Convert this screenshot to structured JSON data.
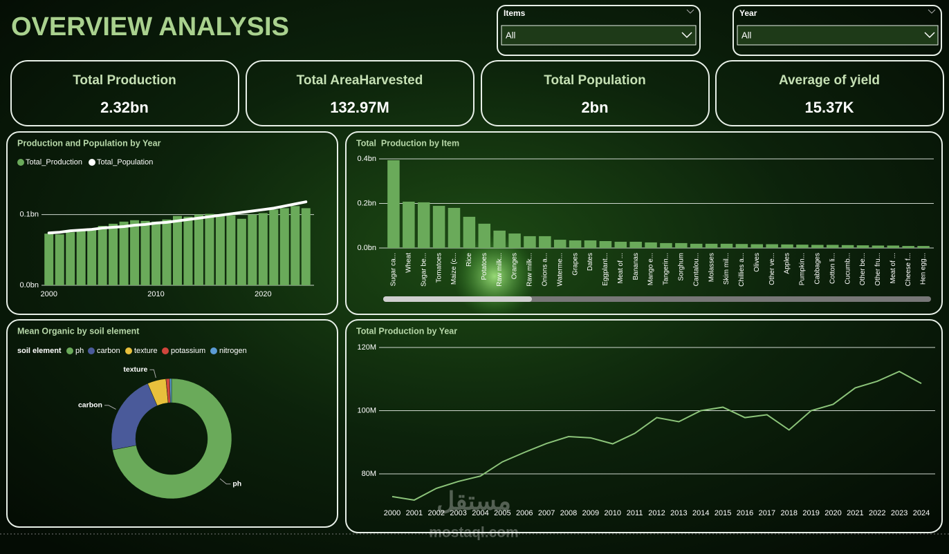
{
  "header": {
    "title": "OVERVIEW ANALYSIS"
  },
  "slicers": [
    {
      "label": "Items",
      "value": "All"
    },
    {
      "label": "Year",
      "value": "All"
    }
  ],
  "kpis": [
    {
      "label": "Total Production",
      "value": "2.32bn"
    },
    {
      "label": "Total AreaHarvested",
      "value": "132.97M"
    },
    {
      "label": "Total Population",
      "value": "2bn"
    },
    {
      "label": "Average of yield",
      "value": "15.37K"
    }
  ],
  "watermark": {
    "arabic": "مستقل",
    "latin": "mostaql.com"
  },
  "chart_data": [
    {
      "type": "bar",
      "title": "Production and Population by Year",
      "x": [
        2000,
        2001,
        2002,
        2003,
        2004,
        2005,
        2006,
        2007,
        2008,
        2009,
        2010,
        2011,
        2012,
        2013,
        2014,
        2015,
        2016,
        2017,
        2018,
        2019,
        2020,
        2021,
        2022,
        2023,
        2024
      ],
      "xlim": [
        1999.5,
        2024.5
      ],
      "xticks": [
        2000,
        2010,
        2020
      ],
      "ylim": [
        0,
        0.125
      ],
      "yticks": [
        {
          "value": 0,
          "label": "0.0bn"
        },
        {
          "value": 0.1,
          "label": "0.1bn"
        }
      ],
      "grid": true,
      "series": [
        {
          "name": "Total_Production",
          "type": "bar",
          "color": "#6aaa5a",
          "values": [
            0.073,
            0.072,
            0.075,
            0.078,
            0.079,
            0.084,
            0.087,
            0.09,
            0.092,
            0.091,
            0.09,
            0.093,
            0.098,
            0.097,
            0.1,
            0.101,
            0.098,
            0.099,
            0.094,
            0.1,
            0.102,
            0.107,
            0.109,
            0.112,
            0.109
          ]
        },
        {
          "name": "Total_Population",
          "type": "line",
          "color": "#ffffff",
          "values": [
            0.074,
            0.075,
            0.077,
            0.078,
            0.079,
            0.081,
            0.082,
            0.083,
            0.085,
            0.086,
            0.088,
            0.089,
            0.091,
            0.093,
            0.095,
            0.097,
            0.099,
            0.101,
            0.103,
            0.105,
            0.107,
            0.109,
            0.112,
            0.115,
            0.118
          ]
        }
      ]
    },
    {
      "type": "bar",
      "title": "Total  Production by Item",
      "categories": [
        "Sugar ca...",
        "Wheat",
        "Sugar be...",
        "Tomatoes",
        "Maize (c...",
        "Rice",
        "Potatoes",
        "Raw milk...",
        "Oranges",
        "Raw milk...",
        "Onions a...",
        "Waterme...",
        "Grapes",
        "Dates",
        "Eggplant...",
        "Meat of ...",
        "Bananas",
        "Mango e...",
        "Tangerin...",
        "Sorghum",
        "Cantalou...",
        "Molasses",
        "Skim mil...",
        "Chillies a...",
        "Olives",
        "Other ve...",
        "Apples",
        "Pumpkin...",
        "Cabbages",
        "Cotton li...",
        "Cucumb...",
        "Other be...",
        "Other fru...",
        "Meat of ...",
        "Cheese f...",
        "Hen egg..."
      ],
      "values": [
        0.394,
        0.208,
        0.205,
        0.189,
        0.18,
        0.14,
        0.109,
        0.078,
        0.065,
        0.053,
        0.053,
        0.037,
        0.034,
        0.034,
        0.031,
        0.028,
        0.028,
        0.025,
        0.022,
        0.022,
        0.019,
        0.019,
        0.019,
        0.018,
        0.017,
        0.017,
        0.016,
        0.015,
        0.014,
        0.014,
        0.013,
        0.012,
        0.011,
        0.011,
        0.009,
        0.009
      ],
      "color": "#6aaa5a",
      "ylim": [
        0,
        0.4
      ],
      "yticks": [
        {
          "value": 0,
          "label": "0.0bn"
        },
        {
          "value": 0.2,
          "label": "0.2bn"
        },
        {
          "value": 0.4,
          "label": "0.4bn"
        }
      ],
      "grid": true
    },
    {
      "type": "donut",
      "title": "Mean Organic by soil element",
      "legend_title": "soil element",
      "categories": [
        "ph",
        "carbon",
        "texture",
        "potassium",
        "nitrogen"
      ],
      "values": [
        72,
        21.5,
        5,
        1,
        0.5
      ],
      "colors": [
        "#6aaa5a",
        "#4a5a9a",
        "#e8c03c",
        "#d0453c",
        "#5b9bd5"
      ]
    },
    {
      "type": "line",
      "title": "Total Production by Year",
      "categories": [
        "2000",
        "2001",
        "2002",
        "2003",
        "2004",
        "2005",
        "2006",
        "2007",
        "2008",
        "2009",
        "2010",
        "2011",
        "2012",
        "2013",
        "2014",
        "2015",
        "2016",
        "2017",
        "2018",
        "2019",
        "2020",
        "2021",
        "2022",
        "2023",
        "2024"
      ],
      "values": [
        72.8,
        71.7,
        75.4,
        77.6,
        79.3,
        83.8,
        86.8,
        89.6,
        91.8,
        91.4,
        89.5,
        92.8,
        97.8,
        96.5,
        100,
        101.1,
        97.8,
        98.7,
        93.9,
        100,
        102,
        107.2,
        109.3,
        112.4,
        108.6
      ],
      "color": "#8cc47a",
      "ylim": [
        69.5,
        120
      ],
      "yticks": [
        {
          "value": 80,
          "label": "80M"
        },
        {
          "value": 100,
          "label": "100M"
        },
        {
          "value": 120,
          "label": "120M"
        }
      ],
      "grid": true
    }
  ]
}
